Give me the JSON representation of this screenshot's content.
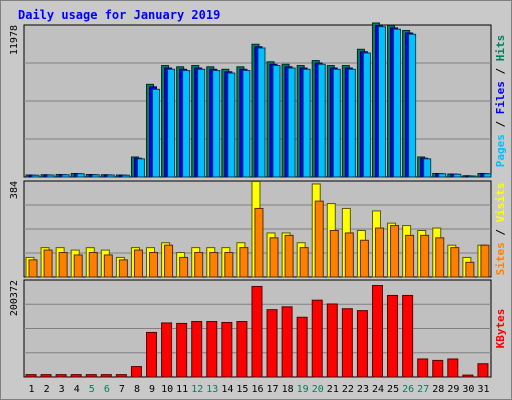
{
  "chart_data": {
    "type": "bar",
    "title": "Daily usage for January 2019",
    "categories": [
      "1",
      "2",
      "3",
      "4",
      "5",
      "6",
      "7",
      "8",
      "9",
      "10",
      "11",
      "12",
      "13",
      "14",
      "15",
      "16",
      "17",
      "18",
      "19",
      "20",
      "21",
      "22",
      "23",
      "24",
      "25",
      "26",
      "27",
      "28",
      "29",
      "30",
      "31"
    ],
    "weekend_days": [
      "5",
      "6",
      "12",
      "13",
      "19",
      "20",
      "26",
      "27"
    ],
    "panels": [
      {
        "id": "hits",
        "max_label": "11978",
        "ymax": 11978,
        "series": [
          {
            "name": "Hits",
            "color": "#00805c",
            "values": [
              160,
              180,
              200,
              280,
              200,
              180,
              160,
              1600,
              7400,
              8900,
              8800,
              8900,
              8800,
              8600,
              8800,
              10600,
              9200,
              9000,
              8900,
              9300,
              8900,
              8900,
              10200,
              12300,
              12100,
              11700,
              1600,
              280,
              240,
              100,
              280
            ]
          },
          {
            "name": "Files",
            "color": "#0000ff",
            "values": [
              150,
              170,
              190,
              270,
              190,
              170,
              150,
              1500,
              7200,
              8700,
              8600,
              8700,
              8600,
              8400,
              8600,
              10400,
              9000,
              8800,
              8700,
              9100,
              8700,
              8700,
              10000,
              12100,
              11900,
              11500,
              1500,
              270,
              230,
              90,
              270
            ]
          },
          {
            "name": "Pages",
            "color": "#00c0ff",
            "values": [
              140,
              160,
              180,
              260,
              180,
              160,
              140,
              1450,
              7000,
              8600,
              8500,
              8600,
              8500,
              8300,
              8500,
              10300,
              8900,
              8700,
              8600,
              9000,
              8600,
              8600,
              9900,
              12000,
              11800,
              11400,
              1450,
              260,
              220,
              80,
              260
            ]
          }
        ]
      },
      {
        "id": "visits",
        "max_label": "384",
        "ymax": 384,
        "series": [
          {
            "name": "Visits",
            "color": "#ffff00",
            "values": [
              80,
              120,
              120,
              110,
              120,
              110,
              80,
              120,
              120,
              140,
              100,
              120,
              120,
              120,
              140,
              390,
              180,
              180,
              140,
              380,
              300,
              280,
              190,
              270,
              220,
              210,
              190,
              200,
              130,
              80,
              130
            ]
          },
          {
            "name": "Sites",
            "color": "#ff8000",
            "values": [
              70,
              110,
              100,
              90,
              100,
              90,
              70,
              110,
              100,
              130,
              80,
              100,
              100,
              100,
              120,
              280,
              160,
              170,
              120,
              310,
              190,
              180,
              150,
              200,
              210,
              170,
              170,
              160,
              120,
              60,
              130
            ]
          }
        ]
      },
      {
        "id": "kbytes",
        "max_label": "200372",
        "ymax": 200372,
        "series": [
          {
            "name": "KBytes",
            "color": "#ff0000",
            "values": [
              5000,
              5000,
              5000,
              5000,
              5000,
              5000,
              5000,
              22000,
              94000,
              114000,
              113000,
              117000,
              117000,
              115000,
              117000,
              191000,
              142000,
              148000,
              126000,
              162000,
              154000,
              144000,
              140000,
              193000,
              172000,
              172000,
              38000,
              35000,
              38000,
              4000,
              28000
            ]
          }
        ]
      }
    ],
    "right_labels": [
      {
        "panel": "hits",
        "parts": [
          {
            "text": "Pages",
            "color": "#00c0ff"
          },
          {
            "text": " / ",
            "color": "#000000"
          },
          {
            "text": "Files",
            "color": "#0000ff"
          },
          {
            "text": " / ",
            "color": "#000000"
          },
          {
            "text": "Hits",
            "color": "#00805c"
          }
        ]
      },
      {
        "panel": "visits",
        "parts": [
          {
            "text": "Sites",
            "color": "#ff8000"
          },
          {
            "text": " / ",
            "color": "#000000"
          },
          {
            "text": "Visits",
            "color": "#ffff00"
          }
        ]
      },
      {
        "panel": "kbytes",
        "parts": [
          {
            "text": "KBytes",
            "color": "#ff0000"
          }
        ]
      }
    ],
    "grid": true,
    "colors": {
      "background": "#c0c0c0",
      "gridline": "#808080",
      "title": "#0000ff",
      "weekend_label": "#00805c",
      "weekday_label": "#000000"
    }
  }
}
